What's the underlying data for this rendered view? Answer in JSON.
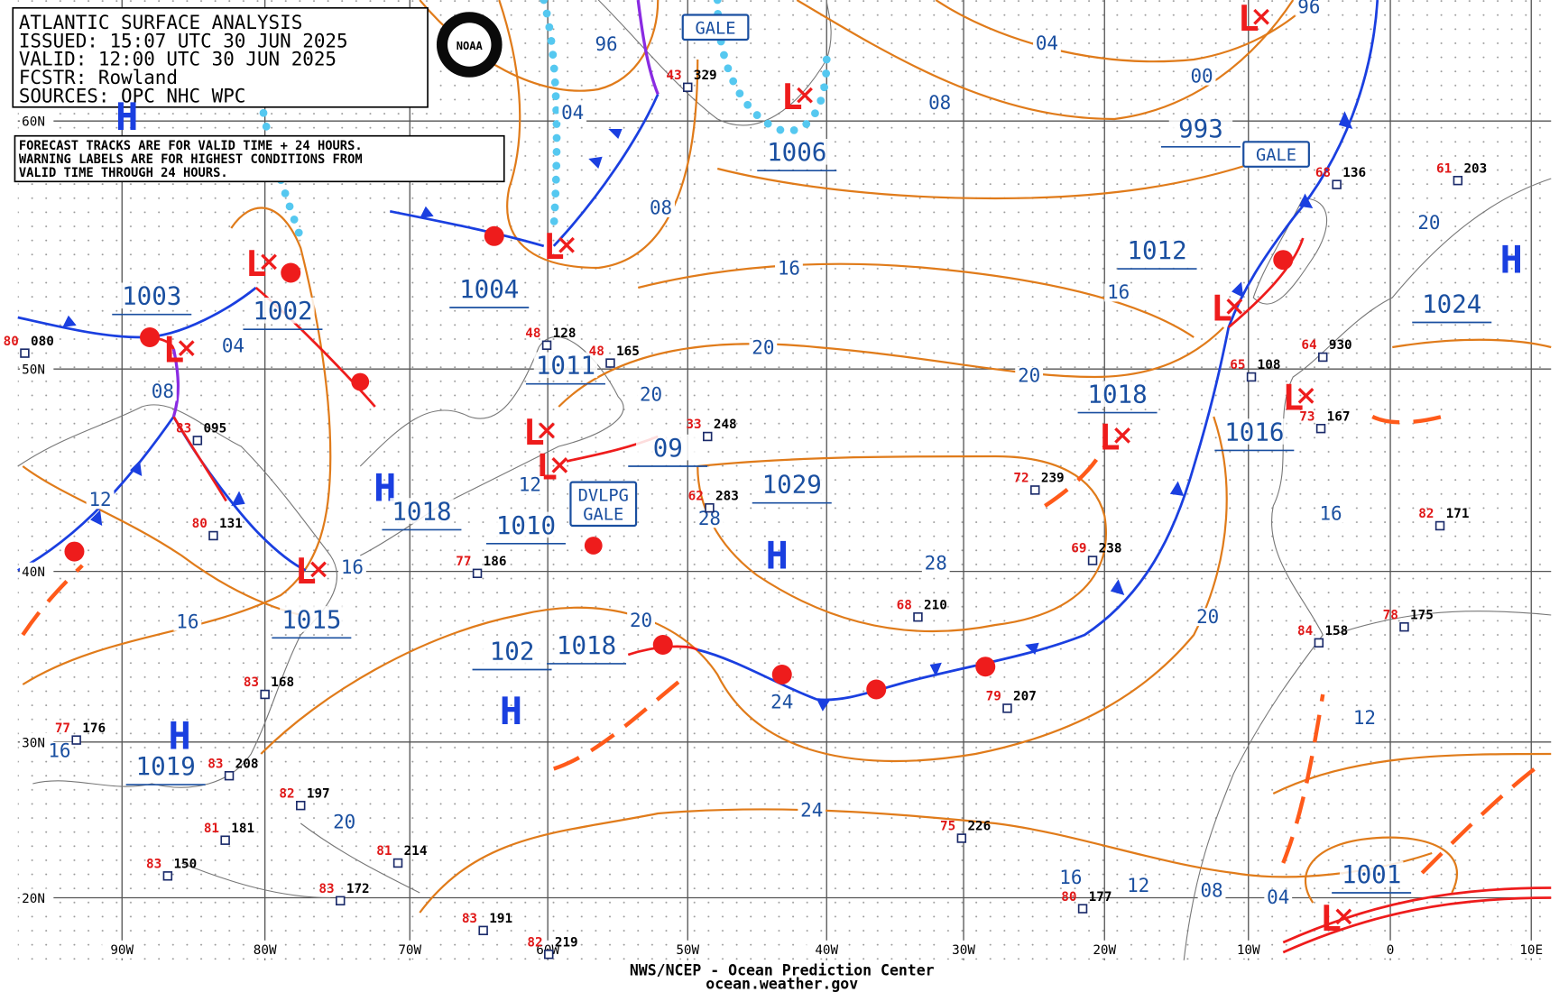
{
  "header": {
    "lines": [
      "ATLANTIC SURFACE ANALYSIS",
      "ISSUED: 15:07 UTC 30 JUN 2025",
      "VALID:  12:00 UTC 30 JUN 2025",
      "FCSTR:  Rowland",
      "SOURCES: OPC NHC WPC"
    ]
  },
  "notice": {
    "lines": [
      "FORECAST TRACKS ARE FOR VALID TIME + 24 HOURS.",
      "WARNING LABELS ARE FOR HIGHEST CONDITIONS FROM",
      "VALID TIME THROUGH 24 HOURS."
    ]
  },
  "logo": "NOAA",
  "lat_labels": [
    "60N",
    "50N",
    "40N",
    "30N",
    "20N"
  ],
  "lon_labels": [
    "90W",
    "80W",
    "70W",
    "60W",
    "50W",
    "40W",
    "30W",
    "20W",
    "10W",
    "0",
    "10E"
  ],
  "pressure_systems": [
    {
      "symbol": "H"
    },
    {
      "symbol": "H"
    },
    {
      "symbol": "H"
    },
    {
      "symbol": "H"
    },
    {
      "symbol": "H"
    },
    {
      "symbol": "H"
    },
    {
      "symbol": "L"
    },
    {
      "symbol": "L"
    },
    {
      "symbol": "L"
    },
    {
      "symbol": "L"
    },
    {
      "symbol": "L"
    },
    {
      "symbol": "L"
    },
    {
      "symbol": "L"
    },
    {
      "symbol": "L"
    },
    {
      "symbol": "L"
    },
    {
      "symbol": "L"
    },
    {
      "symbol": "L"
    },
    {
      "symbol": "L"
    }
  ],
  "center_pressures": [
    "1006",
    "993",
    "1012",
    "1004",
    "1002",
    "1003",
    "1011",
    "1018",
    "1016",
    "1024",
    "1029",
    "1018",
    "1010",
    "1015",
    "1018",
    "102",
    "1019",
    "1001",
    "09"
  ],
  "isobar_labels": [
    "96",
    "04",
    "04",
    "00",
    "08",
    "96",
    "08",
    "16",
    "16",
    "20",
    "20",
    "04",
    "08",
    "12",
    "16",
    "16",
    "12",
    "20",
    "28",
    "28",
    "20",
    "24",
    "24",
    "20",
    "16",
    "16",
    "20",
    "12",
    "16",
    "12",
    "08",
    "04",
    "20"
  ],
  "warnings": [
    {
      "lines": [
        "GALE"
      ]
    },
    {
      "lines": [
        "GALE"
      ]
    },
    {
      "lines": [
        "DVLPG",
        "GALE"
      ]
    }
  ],
  "stations": [
    {
      "temp": "80",
      "pressure": "080"
    },
    {
      "temp": "83",
      "pressure": "095"
    },
    {
      "temp": "80",
      "pressure": "131"
    },
    {
      "temp": "48",
      "pressure": "128"
    },
    {
      "temp": "48",
      "pressure": "165"
    },
    {
      "temp": "33",
      "pressure": "248"
    },
    {
      "temp": "62",
      "pressure": "283"
    },
    {
      "temp": "77",
      "pressure": "186"
    },
    {
      "temp": "72",
      "pressure": "239"
    },
    {
      "temp": "69",
      "pressure": "238"
    },
    {
      "temp": "68",
      "pressure": "210"
    },
    {
      "temp": "79",
      "pressure": "207"
    },
    {
      "temp": "75",
      "pressure": "226"
    },
    {
      "temp": "83",
      "pressure": "168"
    },
    {
      "temp": "77",
      "pressure": "176"
    },
    {
      "temp": "83",
      "pressure": "208"
    },
    {
      "temp": "81",
      "pressure": "181"
    },
    {
      "temp": "82",
      "pressure": "197"
    },
    {
      "temp": "81",
      "pressure": "214"
    },
    {
      "temp": "83",
      "pressure": "150"
    },
    {
      "temp": "83",
      "pressure": "172"
    },
    {
      "temp": "83",
      "pressure": "191"
    },
    {
      "temp": "82",
      "pressure": "219"
    },
    {
      "temp": "80",
      "pressure": "177"
    },
    {
      "temp": "68",
      "pressure": "136"
    },
    {
      "temp": "61",
      "pressure": "203"
    },
    {
      "temp": "65",
      "pressure": "108"
    },
    {
      "temp": "64",
      "pressure": "930"
    },
    {
      "temp": "73",
      "pressure": "167"
    },
    {
      "temp": "84",
      "pressure": "158"
    },
    {
      "temp": "78",
      "pressure": "175"
    },
    {
      "temp": "82",
      "pressure": "171"
    },
    {
      "temp": "43",
      "pressure": "329"
    }
  ],
  "footer": {
    "lines": [
      "NWS/NCEP - Ocean Prediction Center",
      "ocean.weather.gov"
    ]
  }
}
